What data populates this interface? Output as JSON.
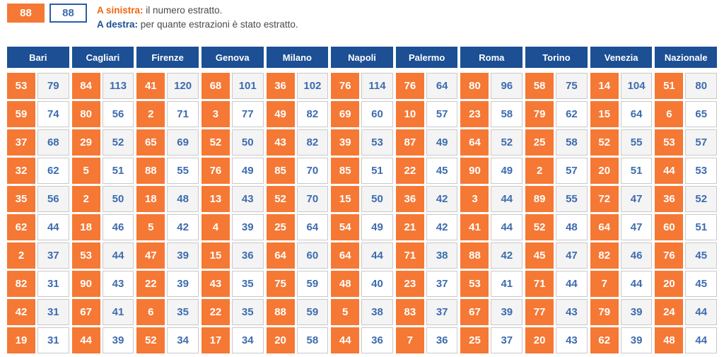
{
  "legend": {
    "left_sample": "88",
    "right_sample": "88",
    "left_label": "A sinistra:",
    "left_text": "il numero estratto.",
    "right_label": "A destra:",
    "right_text": "per quante estrazioni è stato estratto."
  },
  "colors": {
    "orange": "#f57835",
    "header_blue": "#1c4f93",
    "number_blue": "#3d6baf",
    "cell_border": "#c9c9c9",
    "striped_cell_bg": "#f4f4f4"
  },
  "table": {
    "columns": [
      {
        "name": "Bari",
        "rows": [
          [
            53,
            79
          ],
          [
            59,
            74
          ],
          [
            37,
            68
          ],
          [
            32,
            62
          ],
          [
            35,
            56
          ],
          [
            62,
            44
          ],
          [
            2,
            37
          ],
          [
            82,
            31
          ],
          [
            42,
            31
          ],
          [
            19,
            31
          ]
        ]
      },
      {
        "name": "Cagliari",
        "rows": [
          [
            84,
            113
          ],
          [
            80,
            56
          ],
          [
            29,
            52
          ],
          [
            5,
            51
          ],
          [
            2,
            50
          ],
          [
            18,
            46
          ],
          [
            53,
            44
          ],
          [
            90,
            43
          ],
          [
            67,
            41
          ],
          [
            44,
            39
          ]
        ]
      },
      {
        "name": "Firenze",
        "rows": [
          [
            41,
            120
          ],
          [
            2,
            71
          ],
          [
            65,
            69
          ],
          [
            88,
            55
          ],
          [
            18,
            48
          ],
          [
            5,
            42
          ],
          [
            47,
            39
          ],
          [
            22,
            39
          ],
          [
            6,
            35
          ],
          [
            52,
            34
          ]
        ]
      },
      {
        "name": "Genova",
        "rows": [
          [
            68,
            101
          ],
          [
            3,
            77
          ],
          [
            52,
            50
          ],
          [
            76,
            49
          ],
          [
            13,
            43
          ],
          [
            4,
            39
          ],
          [
            15,
            36
          ],
          [
            43,
            35
          ],
          [
            22,
            35
          ],
          [
            17,
            34
          ]
        ]
      },
      {
        "name": "Milano",
        "rows": [
          [
            36,
            102
          ],
          [
            49,
            82
          ],
          [
            43,
            82
          ],
          [
            85,
            70
          ],
          [
            52,
            70
          ],
          [
            25,
            64
          ],
          [
            64,
            60
          ],
          [
            75,
            59
          ],
          [
            88,
            59
          ],
          [
            20,
            58
          ]
        ]
      },
      {
        "name": "Napoli",
        "rows": [
          [
            76,
            114
          ],
          [
            69,
            60
          ],
          [
            39,
            53
          ],
          [
            85,
            51
          ],
          [
            15,
            50
          ],
          [
            54,
            49
          ],
          [
            64,
            44
          ],
          [
            48,
            40
          ],
          [
            5,
            38
          ],
          [
            44,
            36
          ]
        ]
      },
      {
        "name": "Palermo",
        "rows": [
          [
            76,
            64
          ],
          [
            10,
            57
          ],
          [
            87,
            49
          ],
          [
            22,
            45
          ],
          [
            36,
            42
          ],
          [
            21,
            42
          ],
          [
            71,
            38
          ],
          [
            23,
            37
          ],
          [
            83,
            37
          ],
          [
            7,
            36
          ]
        ]
      },
      {
        "name": "Roma",
        "rows": [
          [
            80,
            96
          ],
          [
            23,
            58
          ],
          [
            64,
            52
          ],
          [
            90,
            49
          ],
          [
            3,
            44
          ],
          [
            41,
            44
          ],
          [
            88,
            42
          ],
          [
            53,
            41
          ],
          [
            67,
            39
          ],
          [
            25,
            37
          ]
        ]
      },
      {
        "name": "Torino",
        "rows": [
          [
            58,
            75
          ],
          [
            79,
            62
          ],
          [
            25,
            58
          ],
          [
            2,
            57
          ],
          [
            89,
            55
          ],
          [
            52,
            48
          ],
          [
            45,
            47
          ],
          [
            71,
            44
          ],
          [
            77,
            43
          ],
          [
            20,
            43
          ]
        ]
      },
      {
        "name": "Venezia",
        "rows": [
          [
            14,
            104
          ],
          [
            15,
            64
          ],
          [
            52,
            55
          ],
          [
            20,
            51
          ],
          [
            72,
            47
          ],
          [
            64,
            47
          ],
          [
            82,
            46
          ],
          [
            7,
            44
          ],
          [
            79,
            39
          ],
          [
            62,
            39
          ]
        ]
      },
      {
        "name": "Nazionale",
        "rows": [
          [
            51,
            80
          ],
          [
            6,
            65
          ],
          [
            53,
            57
          ],
          [
            44,
            53
          ],
          [
            36,
            52
          ],
          [
            60,
            51
          ],
          [
            76,
            45
          ],
          [
            20,
            45
          ],
          [
            24,
            44
          ],
          [
            48,
            44
          ]
        ]
      }
    ]
  }
}
